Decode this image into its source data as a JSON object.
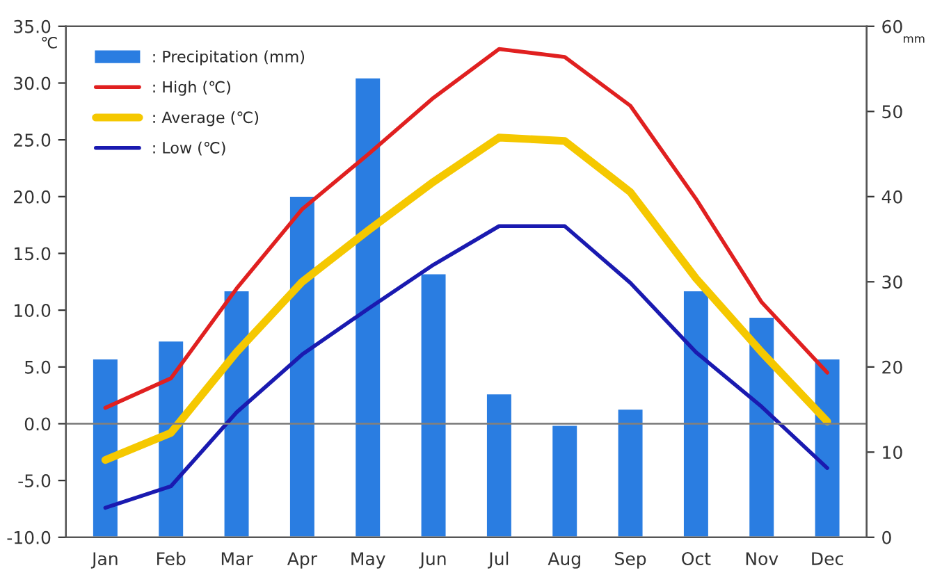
{
  "chart_data": {
    "type": "bar",
    "categories": [
      "Jan",
      "Feb",
      "Mar",
      "Apr",
      "May",
      "Jun",
      "Jul",
      "Aug",
      "Sep",
      "Oct",
      "Nov",
      "Dec"
    ],
    "ylabel": "℃",
    "y2label": "mm",
    "series": [
      {
        "name": ": Precipitation (mm)",
        "axis": "y2",
        "color": "#2a7de1",
        "values": [
          21.0,
          23.1,
          29.0,
          40.1,
          54.0,
          31.0,
          16.9,
          13.2,
          15.1,
          29.0,
          25.9,
          21.0
        ]
      },
      {
        "name": ": High (℃)",
        "type": "line",
        "color": "#e02020",
        "values": [
          1.4,
          4.0,
          11.9,
          18.9,
          23.7,
          28.7,
          33.0,
          32.3,
          28.0,
          19.8,
          10.7,
          4.5
        ]
      },
      {
        "name": ": Average (℃)",
        "type": "line",
        "color": "#f5c800",
        "values": [
          -3.2,
          -0.8,
          6.3,
          12.5,
          17.0,
          21.3,
          25.2,
          24.9,
          20.4,
          12.8,
          6.3,
          0.2
        ]
      },
      {
        "name": ": Low (℃)",
        "type": "line",
        "color": "#1a1ab0",
        "values": [
          -7.4,
          -5.5,
          1.0,
          6.1,
          10.1,
          14.0,
          17.4,
          17.4,
          12.4,
          6.3,
          1.5,
          -3.9
        ]
      }
    ],
    "ylim": [
      -10,
      35
    ],
    "yticks": [
      {
        "value": -10,
        "label": "-10.0"
      },
      {
        "value": -5,
        "label": "-5.0"
      },
      {
        "value": 0,
        "label": "0.0"
      },
      {
        "value": 5,
        "label": "5.0"
      },
      {
        "value": 10,
        "label": "10.0"
      },
      {
        "value": 15,
        "label": "15.0"
      },
      {
        "value": 20,
        "label": "20.0"
      },
      {
        "value": 25,
        "label": "25.0"
      },
      {
        "value": 30,
        "label": "30.0"
      },
      {
        "value": 35,
        "label": "35.0"
      }
    ],
    "y2lim": [
      0,
      60
    ],
    "y2ticks": [
      0,
      10,
      20,
      30,
      40,
      50,
      60
    ],
    "ref_lines": [
      {
        "axis": "y",
        "value": 0,
        "color": "#808080"
      }
    ],
    "grid": false,
    "legend": "top left"
  }
}
